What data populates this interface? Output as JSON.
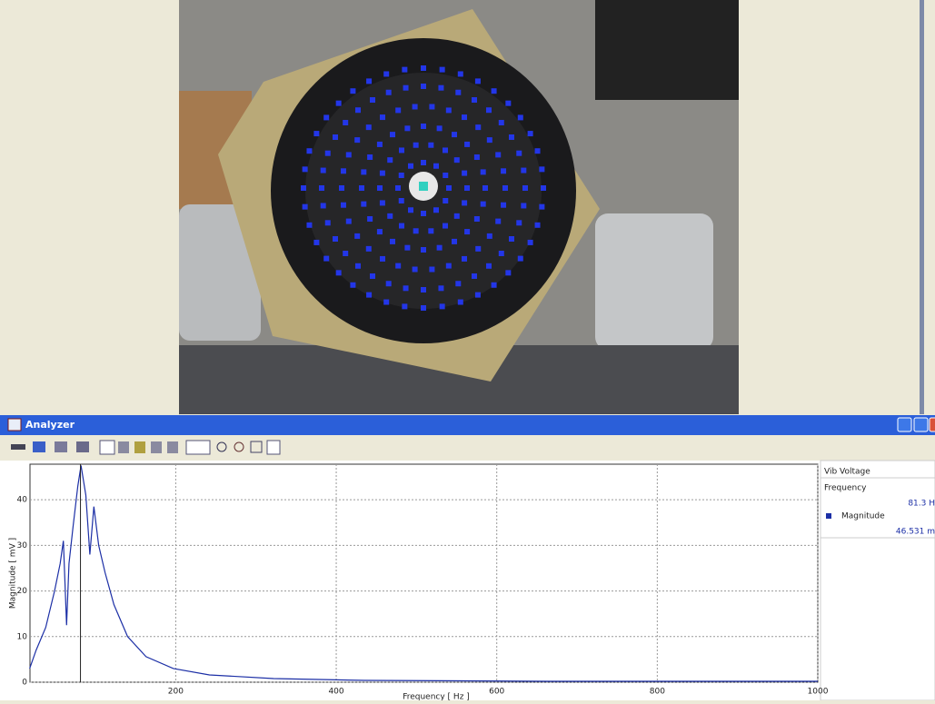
{
  "window": {
    "title": "Analyzer"
  },
  "chart_data": {
    "type": "line",
    "xlabel": "Frequency [ Hz ]",
    "ylabel": "Magnitude [ mV ]",
    "x": [
      18,
      26,
      38,
      49,
      56,
      60,
      64,
      67,
      72,
      78,
      82,
      88,
      93,
      98,
      104,
      112,
      123,
      140,
      163,
      197,
      242,
      322,
      435,
      662,
      1000
    ],
    "series": [
      {
        "name": "Magnitude",
        "color": "#1c2fa6",
        "values": [
          3,
          7,
          12,
          20,
          26,
          31,
          12.5,
          26,
          34,
          43,
          47.5,
          41,
          28,
          38.5,
          30,
          24,
          17,
          10,
          5.6,
          3,
          1.6,
          0.8,
          0.4,
          0.2,
          0.2
        ]
      }
    ],
    "cursor_x": 81.3,
    "xlim": [
      18.4,
      1000
    ],
    "ylim": [
      0,
      47.8
    ],
    "xticks": [
      200,
      400,
      600,
      800,
      1000
    ],
    "yticks": [
      0,
      10,
      20,
      30,
      40
    ],
    "grid": true
  },
  "panel": {
    "heading": "Vib Voltage",
    "frequency_label": "Frequency",
    "frequency_value": "81.3 H",
    "magnitude_label": "Magnitude",
    "magnitude_value": "46.531 m"
  }
}
